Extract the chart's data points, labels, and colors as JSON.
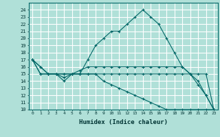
{
  "xlabel": "Humidex (Indice chaleur)",
  "ylabel": "",
  "background_color": "#b0e0d8",
  "grid_color": "#ffffff",
  "line_color": "#006666",
  "xlim": [
    -0.5,
    23.5
  ],
  "ylim": [
    10,
    25
  ],
  "yticks": [
    10,
    11,
    12,
    13,
    14,
    15,
    16,
    17,
    18,
    19,
    20,
    21,
    22,
    23,
    24
  ],
  "xticks": [
    0,
    1,
    2,
    3,
    4,
    5,
    6,
    7,
    8,
    9,
    10,
    11,
    12,
    13,
    14,
    15,
    16,
    17,
    18,
    19,
    20,
    21,
    22,
    23
  ],
  "series": [
    [
      17,
      16,
      15,
      15,
      14,
      15,
      15,
      17,
      19,
      20,
      21,
      21,
      22,
      23,
      24,
      23,
      22,
      20,
      18,
      16,
      15,
      14,
      12,
      10
    ],
    [
      17,
      16,
      15,
      15,
      14.5,
      15,
      15.5,
      16,
      16,
      16,
      16,
      16,
      16,
      16,
      16,
      16,
      16,
      16,
      16,
      16,
      15,
      13.5,
      12,
      10
    ],
    [
      17,
      15,
      15,
      15,
      15,
      15,
      15,
      15,
      15,
      15,
      15,
      15,
      15,
      15,
      15,
      15,
      15,
      15,
      15,
      15,
      15,
      15,
      15,
      10
    ],
    [
      17,
      15,
      15,
      15,
      15,
      15,
      15,
      15,
      15,
      14,
      13.5,
      13,
      12.5,
      12,
      11.5,
      11,
      10.5,
      10,
      10,
      10,
      10,
      10,
      10,
      10
    ]
  ]
}
